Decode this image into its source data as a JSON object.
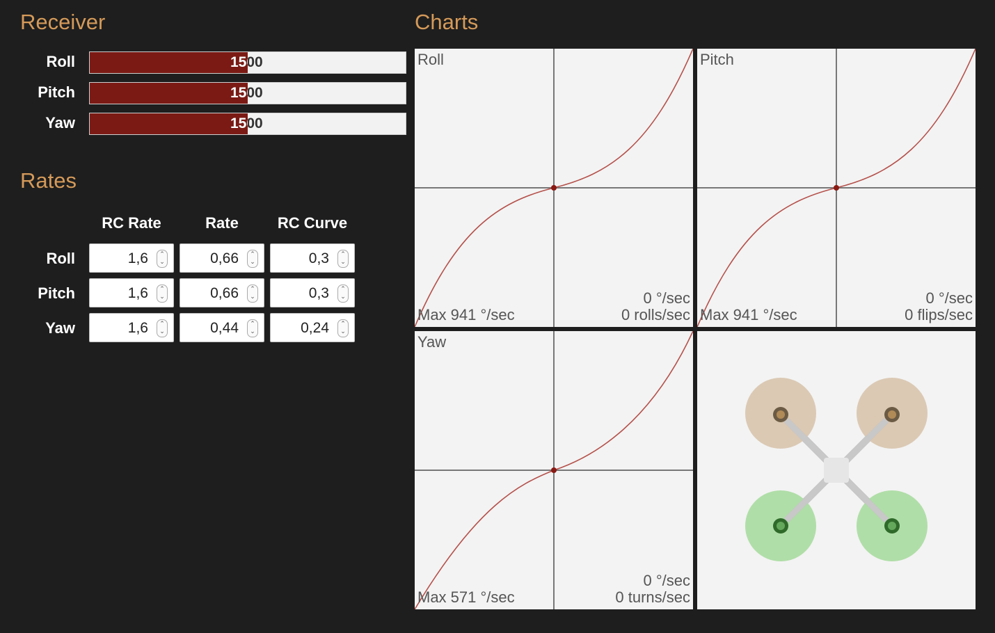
{
  "receiver": {
    "title": "Receiver",
    "channels": [
      {
        "label": "Roll",
        "value": "1500",
        "fraction": 0.5
      },
      {
        "label": "Pitch",
        "value": "1500",
        "fraction": 0.5
      },
      {
        "label": "Yaw",
        "value": "1500",
        "fraction": 0.5
      }
    ],
    "bar_color": "#7b1a14"
  },
  "rates": {
    "title": "Rates",
    "headers": [
      "RC Rate",
      "Rate",
      "RC Curve"
    ],
    "rows": [
      {
        "label": "Roll",
        "values": [
          "1,6",
          "0,66",
          "0,3"
        ]
      },
      {
        "label": "Pitch",
        "values": [
          "1,6",
          "0,66",
          "0,3"
        ]
      },
      {
        "label": "Yaw",
        "values": [
          "1,6",
          "0,44",
          "0,24"
        ]
      }
    ]
  },
  "charts": {
    "title": "Charts",
    "accent": "#d59a59",
    "panels": [
      {
        "title": "Roll",
        "max": "Max 941 °/sec",
        "deg": "0 °/sec",
        "count": "0 rolls/sec"
      },
      {
        "title": "Pitch",
        "max": "Max 941 °/sec",
        "deg": "0 °/sec",
        "count": "0 flips/sec"
      },
      {
        "title": "Yaw",
        "max": "Max 571 °/sec",
        "deg": "0 °/sec",
        "count": "0 turns/sec"
      }
    ],
    "model": {
      "front_prop_color": "#d8c4ad",
      "rear_prop_color": "#a8dca0",
      "icon": "quadcopter-icon"
    }
  }
}
